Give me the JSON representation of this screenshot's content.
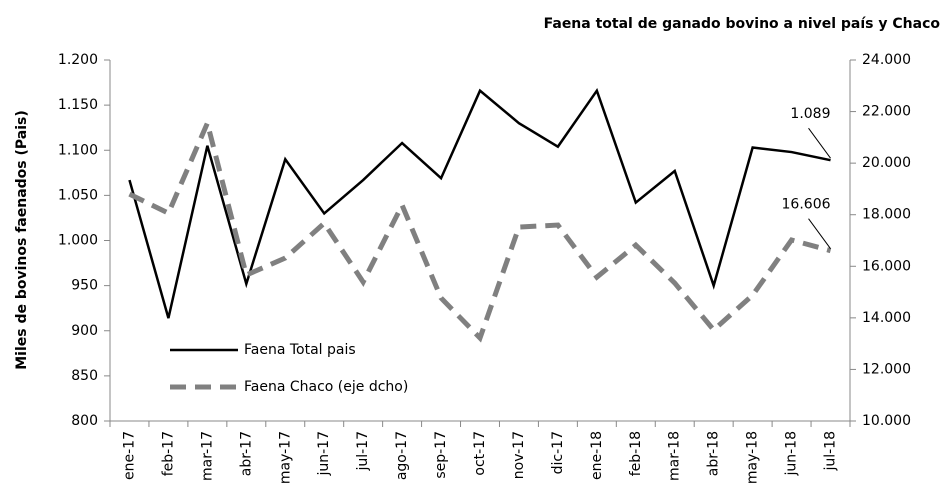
{
  "chart_data": {
    "type": "line",
    "title": "Faena total de ganado bovino a nivel país y Chaco",
    "y_label": "Miles de bovinos faenados (Pais)",
    "categories": [
      "ene-17",
      "feb-17",
      "mar-17",
      "abr-17",
      "may-17",
      "jun-17",
      "jul-17",
      "ago-17",
      "sep-17",
      "oct-17",
      "nov-17",
      "dic-17",
      "ene-18",
      "feb-18",
      "mar-18",
      "abr-18",
      "may-18",
      "jun-18",
      "jul-18"
    ],
    "series": [
      {
        "name": "Faena Total pais",
        "color": "#000000",
        "dash": false,
        "axis": "y",
        "values": [
          1067,
          914,
          1105,
          952,
          1090,
          1030,
          1067,
          1108,
          1069,
          1166,
          1130,
          1104,
          1166,
          1042,
          1077,
          950,
          1103,
          1098,
          1089
        ],
        "value_labels": [
          null,
          null,
          null,
          null,
          null,
          null,
          null,
          null,
          null,
          null,
          null,
          null,
          null,
          null,
          null,
          null,
          null,
          null,
          "1.089"
        ]
      },
      {
        "name": "Faena Chaco (eje dcho)",
        "color": "#808080",
        "dash": true,
        "axis": "y2",
        "values": [
          18800,
          18060,
          21550,
          15660,
          16320,
          17670,
          15390,
          18370,
          14770,
          13220,
          17520,
          17600,
          15580,
          16820,
          15350,
          13530,
          14880,
          17020,
          16606
        ],
        "value_labels": [
          null,
          null,
          null,
          null,
          null,
          null,
          null,
          null,
          null,
          null,
          null,
          null,
          null,
          null,
          null,
          null,
          null,
          null,
          "16.606"
        ]
      }
    ],
    "ylim": [
      800,
      1200
    ],
    "yticks": [
      800,
      850,
      900,
      950,
      {
        "value": 1000,
        "label": "1.000"
      },
      {
        "value": 1050,
        "label": "1.050"
      },
      {
        "value": 1100,
        "label": "1.100"
      },
      {
        "value": 1150,
        "label": "1.150"
      },
      {
        "value": 1200,
        "label": "1.200"
      }
    ],
    "y2lim": [
      10000,
      24000
    ],
    "y2ticks": [
      {
        "value": 10000,
        "label": "10.000"
      },
      {
        "value": 12000,
        "label": "12.000"
      },
      {
        "value": 14000,
        "label": "14.000"
      },
      {
        "value": 16000,
        "label": "16.000"
      },
      {
        "value": 18000,
        "label": "18.000"
      },
      {
        "value": 20000,
        "label": "20.000"
      },
      {
        "value": 22000,
        "label": "22.000"
      },
      {
        "value": 24000,
        "label": "24.000"
      }
    ],
    "legend": "lower left",
    "grid": false
  }
}
